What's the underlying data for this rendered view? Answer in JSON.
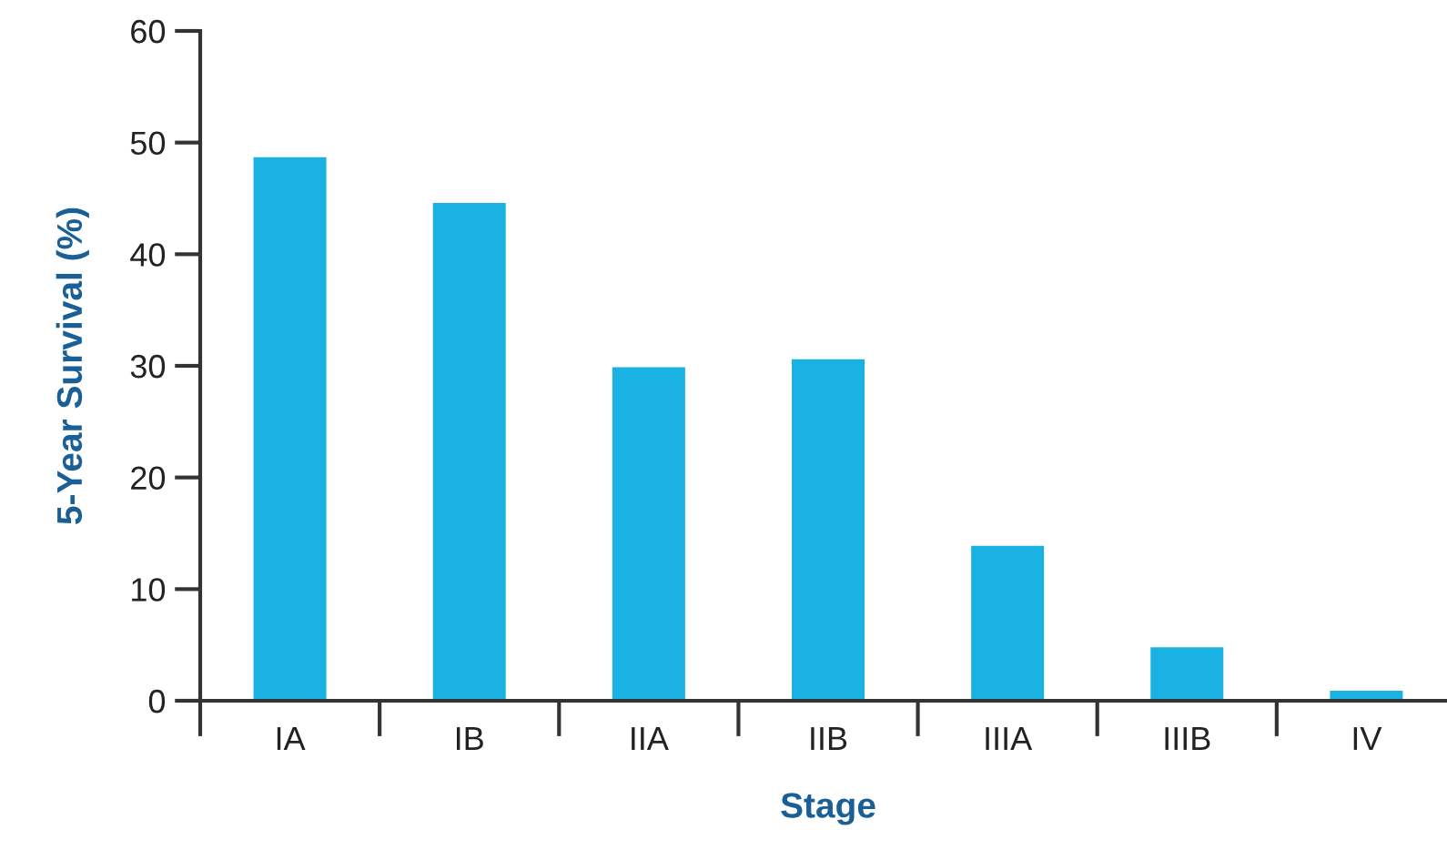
{
  "chart_data": {
    "type": "bar",
    "xlabel": "Stage",
    "ylabel": "5-Year Survival (%)",
    "categories": [
      "IA",
      "IB",
      "IIA",
      "IIB",
      "IIIA",
      "IIIB",
      "IV"
    ],
    "values": [
      48.8,
      44.7,
      30.0,
      30.7,
      14.0,
      4.9,
      1.0
    ],
    "color": "#19b2e2",
    "ylim": [
      0,
      60
    ],
    "yticks": [
      0,
      10,
      20,
      30,
      40,
      50,
      60
    ],
    "grid": false,
    "legend": false
  }
}
